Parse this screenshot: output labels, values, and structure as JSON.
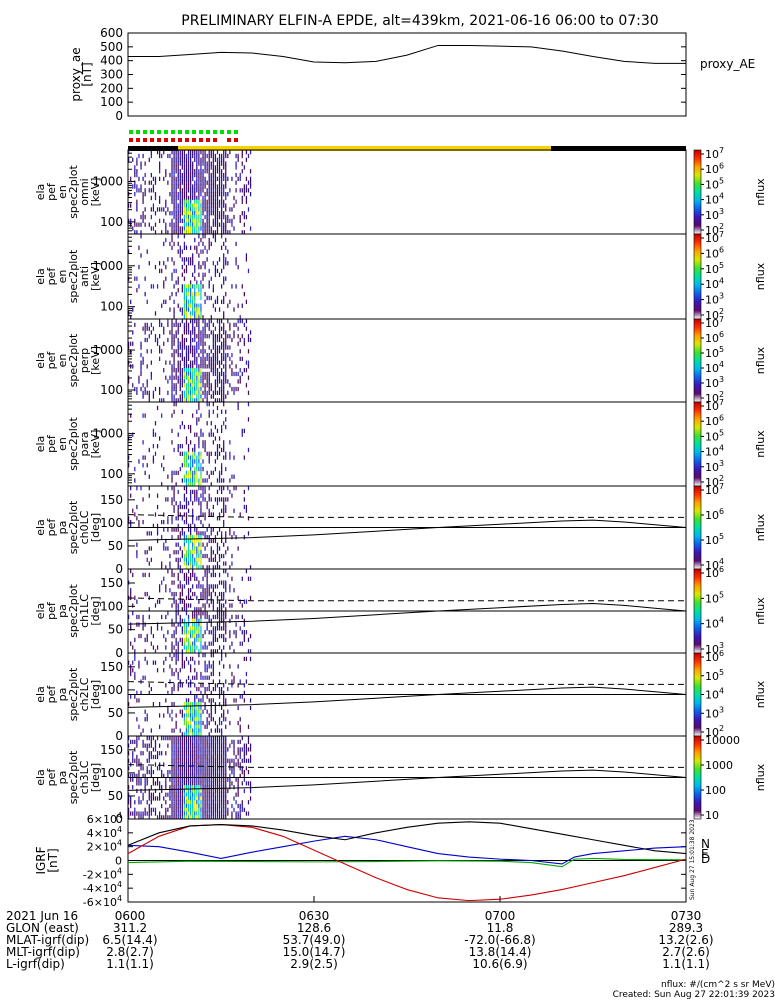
{
  "title": "PRELIMINARY ELFIN-A EPDE, alt=439km, 2021-06-16 06:00 to 07:30",
  "colors": {
    "sunlit": "#f5d300",
    "shadow": "#000000",
    "flag_green": "#00dd00",
    "flag_red": "#dd0000",
    "bx": "#0000cc",
    "by": "#00aa00",
    "bz": "#cc0000",
    "bt": "#000000"
  },
  "colorbar_stops": [
    "#ffffff",
    "#5a0a6a",
    "#3a18b8",
    "#1060ee",
    "#00b8ee",
    "#00e0a0",
    "#40e030",
    "#d8e800",
    "#ffa000",
    "#ff3000",
    "#c00000"
  ],
  "chart_data": [
    {
      "type": "line",
      "panel": "proxy_ae",
      "ylabel_lines": [
        "proxy_ae",
        "[nT]"
      ],
      "legend": "proxy_AE",
      "ylim": [
        0,
        600
      ],
      "yticks": [
        "0",
        "100",
        "200",
        "300",
        "400",
        "500",
        "600"
      ],
      "x_min": [
        0,
        5,
        10,
        15,
        20,
        25,
        30,
        35,
        40,
        45,
        50,
        55,
        60,
        65,
        70,
        75,
        80,
        85,
        90
      ],
      "values": [
        430,
        430,
        445,
        460,
        455,
        430,
        390,
        385,
        395,
        440,
        510,
        510,
        505,
        500,
        470,
        430,
        395,
        380,
        380
      ]
    },
    {
      "type": "heatmap",
      "panel": "omni",
      "ylabel_lines": [
        "ela",
        "pef",
        "en",
        "spec2plot",
        "omni",
        "[keV]"
      ],
      "yscale": "log",
      "yticks": [
        "100",
        "1000"
      ],
      "colorbar_label": "nflux",
      "cb_ticks": [
        "10^2",
        "10^3",
        "10^4",
        "10^5",
        "10^6",
        "10^7"
      ],
      "data_window_min": [
        0,
        20
      ]
    },
    {
      "type": "heatmap",
      "panel": "anti",
      "ylabel_lines": [
        "ela",
        "pef",
        "en",
        "spec2plot",
        "anti",
        "[keV]"
      ],
      "yscale": "log",
      "yticks": [
        "100",
        "1000"
      ],
      "colorbar_label": "nflux",
      "cb_ticks": [
        "10^2",
        "10^3",
        "10^4",
        "10^5",
        "10^6",
        "10^7"
      ],
      "data_window_min": [
        0,
        20
      ]
    },
    {
      "type": "heatmap",
      "panel": "perp",
      "ylabel_lines": [
        "ela",
        "pef",
        "en",
        "spec2plot",
        "perp",
        "[keV]"
      ],
      "yscale": "log",
      "yticks": [
        "100",
        "1000"
      ],
      "colorbar_label": "nflux",
      "cb_ticks": [
        "10^2",
        "10^3",
        "10^4",
        "10^5",
        "10^6",
        "10^7"
      ],
      "data_window_min": [
        0,
        20
      ]
    },
    {
      "type": "heatmap",
      "panel": "para",
      "ylabel_lines": [
        "ela",
        "pef",
        "en",
        "spec2plot",
        "para",
        "[keV]"
      ],
      "yscale": "log",
      "yticks": [
        "100",
        "1000"
      ],
      "colorbar_label": "nflux",
      "cb_ticks": [
        "10^2",
        "10^3",
        "10^4",
        "10^5",
        "10^6",
        "10^7"
      ],
      "data_window_min": [
        0,
        20
      ]
    },
    {
      "type": "heatmap",
      "panel": "ch0LC",
      "ylabel_lines": [
        "ela",
        "pef",
        "pa",
        "spec2plot",
        "ch0LC",
        "[deg]"
      ],
      "ylim": [
        0,
        180
      ],
      "yticks": [
        "0",
        "50",
        "100",
        "150"
      ],
      "colorbar_label": "nflux",
      "cb_ticks": [
        "10^4",
        "10^5",
        "10^6",
        "10^7"
      ],
      "data_window_min": [
        0,
        20
      ],
      "lc_x_min": [
        0,
        10,
        20,
        30,
        40,
        50,
        60,
        70,
        75,
        80,
        85,
        90
      ],
      "lc_deg": [
        62,
        65,
        68,
        74,
        82,
        90,
        97,
        104,
        106,
        102,
        96,
        90
      ],
      "blc_deg": [
        118,
        115,
        112,
        112,
        112,
        112,
        112,
        112,
        112,
        112,
        112,
        112
      ]
    },
    {
      "type": "heatmap",
      "panel": "ch1LC",
      "ylabel_lines": [
        "ela",
        "pef",
        "pa",
        "spec2plot",
        "ch1LC",
        "[deg]"
      ],
      "ylim": [
        0,
        180
      ],
      "yticks": [
        "0",
        "50",
        "100",
        "150"
      ],
      "colorbar_label": "nflux",
      "cb_ticks": [
        "10^3",
        "10^4",
        "10^5",
        "10^6"
      ],
      "data_window_min": [
        0,
        20
      ],
      "lc_x_min": [
        0,
        10,
        20,
        30,
        40,
        50,
        60,
        70,
        75,
        80,
        85,
        90
      ],
      "lc_deg": [
        62,
        65,
        68,
        74,
        82,
        90,
        97,
        104,
        106,
        102,
        96,
        90
      ],
      "blc_deg": [
        118,
        115,
        112,
        112,
        112,
        112,
        112,
        112,
        112,
        112,
        112,
        112
      ]
    },
    {
      "type": "heatmap",
      "panel": "ch2LC",
      "ylabel_lines": [
        "ela",
        "pef",
        "pa",
        "spec2plot",
        "ch2LC",
        "[deg]"
      ],
      "ylim": [
        0,
        180
      ],
      "yticks": [
        "0",
        "50",
        "100",
        "150"
      ],
      "colorbar_label": "nflux",
      "cb_ticks": [
        "10^2",
        "10^3",
        "10^4",
        "10^5",
        "10^6"
      ],
      "data_window_min": [
        0,
        20
      ],
      "lc_x_min": [
        0,
        10,
        20,
        30,
        40,
        50,
        60,
        70,
        75,
        80,
        85,
        90
      ],
      "lc_deg": [
        62,
        65,
        68,
        74,
        82,
        90,
        97,
        104,
        106,
        102,
        96,
        90
      ],
      "blc_deg": [
        118,
        115,
        112,
        112,
        112,
        112,
        112,
        112,
        112,
        112,
        112,
        112
      ]
    },
    {
      "type": "heatmap",
      "panel": "ch3LC",
      "ylabel_lines": [
        "ela",
        "pef",
        "pa",
        "spec2plot",
        "ch3LC",
        "[deg]"
      ],
      "ylim": [
        0,
        180
      ],
      "yticks": [
        "0",
        "50",
        "100",
        "150"
      ],
      "colorbar_label": "nflux",
      "cb_ticks": [
        "10",
        "100",
        "1000",
        "10000"
      ],
      "data_window_min": [
        0,
        20
      ],
      "lc_x_min": [
        0,
        10,
        20,
        30,
        40,
        50,
        60,
        70,
        75,
        80,
        85,
        90
      ],
      "lc_deg": [
        62,
        65,
        68,
        74,
        82,
        90,
        97,
        104,
        106,
        102,
        96,
        90
      ],
      "blc_deg": [
        118,
        115,
        112,
        112,
        112,
        112,
        112,
        112,
        112,
        112,
        112,
        112
      ]
    },
    {
      "type": "line",
      "panel": "igrf",
      "ylabel_lines": [
        "IGRF",
        "[nT]"
      ],
      "ylim": [
        -60000,
        60000
      ],
      "yticks": [
        "-6×10^4",
        "-4×10^4",
        "-2×10^4",
        "0",
        "2×10^4",
        "4×10^4",
        "6×10^4"
      ],
      "legend": [
        "N",
        "E",
        "D"
      ],
      "side_note": "Sun Aug 27 15:01:38 2023",
      "series": [
        {
          "name": "N",
          "color": "#0000cc",
          "x_min": [
            0,
            5,
            10,
            15,
            20,
            25,
            30,
            35,
            40,
            45,
            50,
            55,
            60,
            65,
            70,
            72,
            75,
            80,
            85,
            90
          ],
          "values": [
            22000,
            20000,
            12000,
            3000,
            12000,
            20000,
            28000,
            35000,
            30000,
            20000,
            10000,
            5000,
            2000,
            0,
            -5000,
            5000,
            10000,
            14000,
            18000,
            20000
          ]
        },
        {
          "name": "E",
          "color": "#00aa00",
          "x_min": [
            0,
            10,
            20,
            30,
            40,
            50,
            60,
            65,
            70,
            72,
            75,
            80,
            90
          ],
          "values": [
            -3000,
            -1000,
            -1500,
            -2000,
            -1500,
            -500,
            -1000,
            -3000,
            -9000,
            2000,
            3000,
            1500,
            1000
          ]
        },
        {
          "name": "D",
          "color": "#cc0000",
          "x_min": [
            0,
            5,
            10,
            15,
            20,
            25,
            30,
            35,
            40,
            45,
            50,
            55,
            60,
            65,
            70,
            75,
            80,
            85,
            90
          ],
          "values": [
            10000,
            35000,
            50000,
            52000,
            48000,
            35000,
            15000,
            -5000,
            -25000,
            -42000,
            -54000,
            -58000,
            -56000,
            -50000,
            -42000,
            -32000,
            -22000,
            -10000,
            2000
          ]
        },
        {
          "name": "Bt",
          "color": "#000000",
          "x_min": [
            0,
            5,
            10,
            15,
            20,
            25,
            30,
            35,
            40,
            45,
            50,
            55,
            60,
            65,
            70,
            75,
            80,
            85,
            90
          ],
          "values": [
            22000,
            40000,
            50000,
            52000,
            50000,
            44000,
            36000,
            30000,
            40000,
            48000,
            54000,
            56000,
            54000,
            46000,
            38000,
            30000,
            22000,
            14000,
            10000
          ]
        }
      ]
    }
  ],
  "time_axis": {
    "row_labels": [
      "2021 Jun 16",
      "GLON (east)",
      "MLAT-igrf(dip)",
      "MLT-igrf(dip)",
      "L-igrf(dip)"
    ],
    "ticks": [
      {
        "label": "0600",
        "glon": "311.2",
        "mlat": "6.5(14.4)",
        "mlt": "2.8(2.7)",
        "l": "1.1(1.1)"
      },
      {
        "label": "0630",
        "glon": "128.6",
        "mlat": "53.7(49.0)",
        "mlt": "15.0(14.7)",
        "l": "2.9(2.5)"
      },
      {
        "label": "0700",
        "glon": "11.8",
        "mlat": "-72.0(-66.8)",
        "mlt": "13.8(14.4)",
        "l": "10.6(6.9)"
      },
      {
        "label": "0730",
        "glon": "289.3",
        "mlat": "13.2(2.6)",
        "mlt": "2.7(2.6)",
        "l": "1.1(1.1)"
      }
    ]
  },
  "footer": {
    "units": "nflux: #/(cm^2 s sr MeV)",
    "created": "Created: Sun Aug 27 22:01:39 2023"
  }
}
